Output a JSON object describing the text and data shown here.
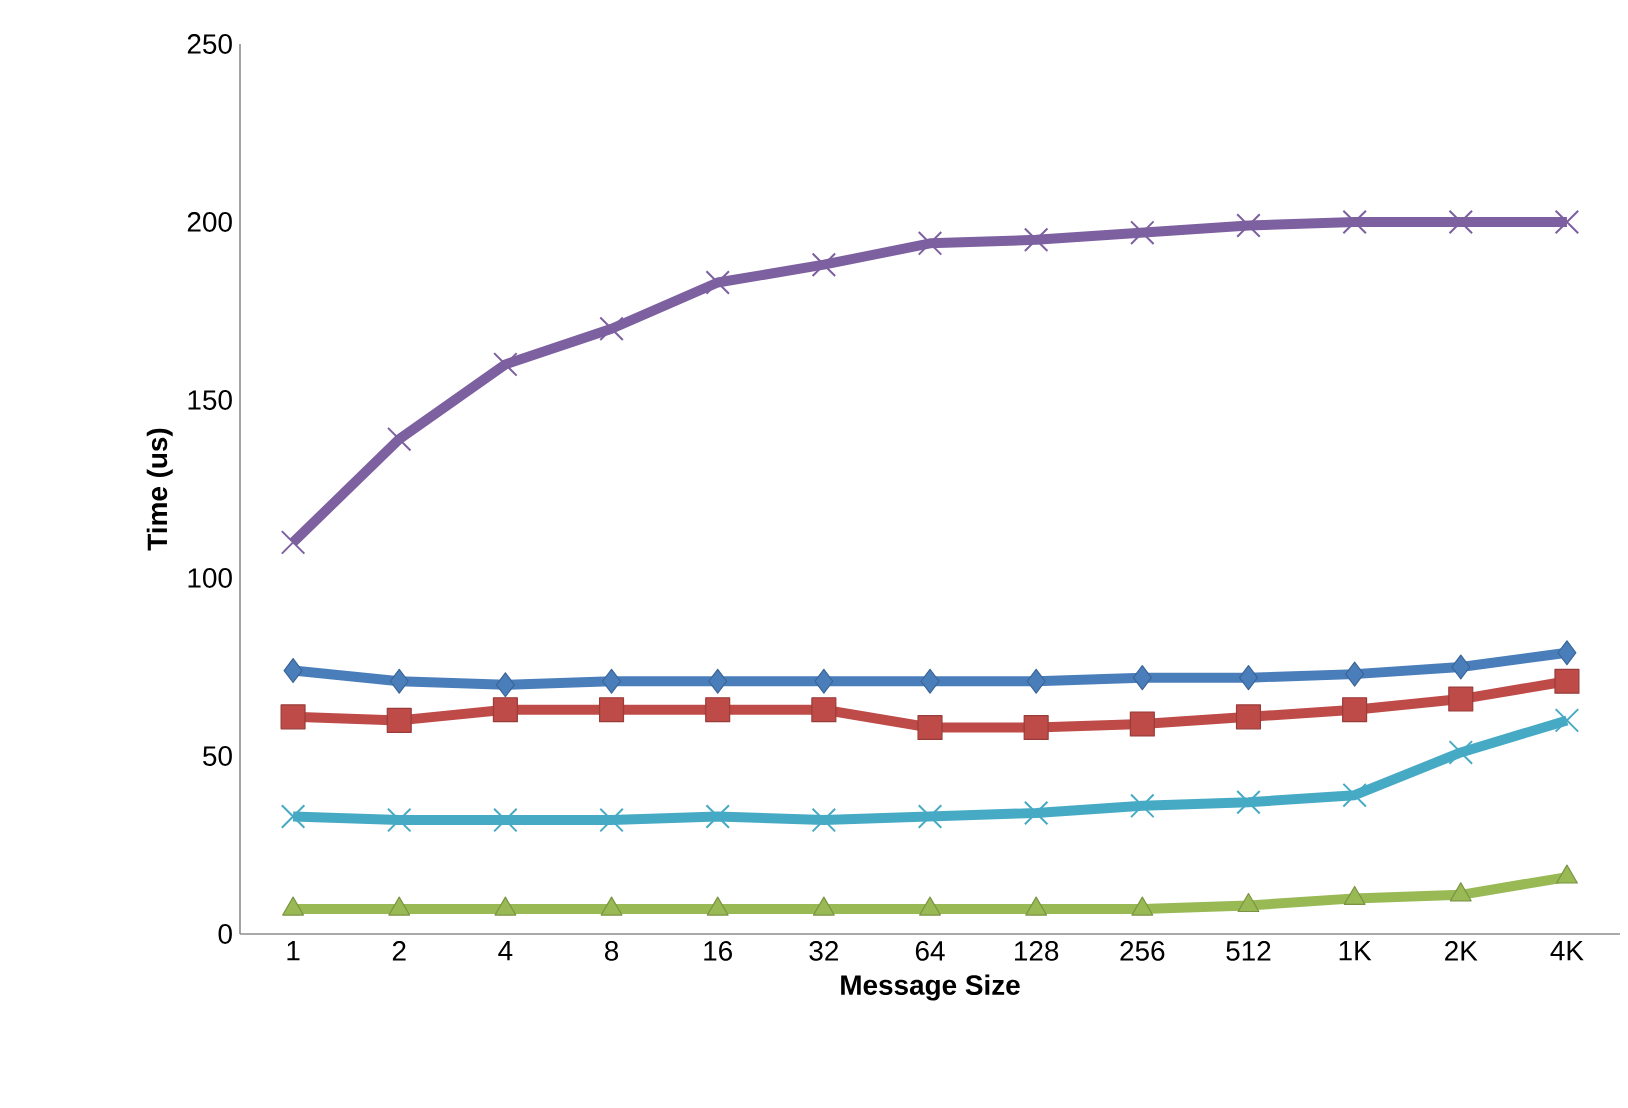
{
  "chart_data": {
    "type": "line",
    "xlabel": "Message Size",
    "ylabel": "Time (us)",
    "categories": [
      "1",
      "2",
      "4",
      "8",
      "16",
      "32",
      "64",
      "128",
      "256",
      "512",
      "1K",
      "2K",
      "4K"
    ],
    "ylim": [
      0,
      250
    ],
    "yticks": [
      0,
      50,
      100,
      150,
      200,
      250
    ],
    "grid": false,
    "line_style": "solid",
    "series": [
      {
        "color": "#4a7ebb",
        "marker": "diamond",
        "values": [
          74,
          71,
          70,
          71,
          71,
          71,
          71,
          71,
          72,
          72,
          73,
          75,
          79
        ]
      },
      {
        "color": "#be4b48",
        "marker": "square",
        "values": [
          61,
          60,
          63,
          63,
          63,
          63,
          58,
          58,
          59,
          61,
          63,
          66,
          71
        ]
      },
      {
        "color": "#98b954",
        "marker": "triangle",
        "values": [
          7,
          7,
          7,
          7,
          7,
          7,
          7,
          7,
          7,
          8,
          10,
          11,
          16
        ]
      },
      {
        "color": "#7d60a0",
        "marker": "cross",
        "values": [
          110,
          139,
          160,
          170,
          183,
          188,
          194,
          195,
          197,
          199,
          200,
          200,
          200
        ]
      },
      {
        "color": "#46aac5",
        "marker": "cross",
        "values": [
          33,
          32,
          32,
          32,
          33,
          32,
          33,
          34,
          36,
          37,
          39,
          51,
          60
        ]
      }
    ]
  }
}
